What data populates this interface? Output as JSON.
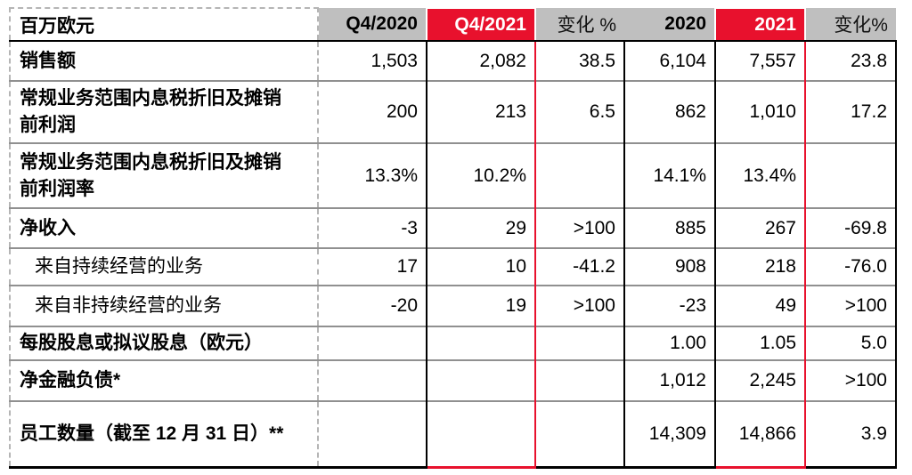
{
  "palette": {
    "highlight_red": "#e8112d",
    "header_gray": "#bfbfbf",
    "grid_gray": "#909090",
    "dashed_border_gray": "#b5b5b5",
    "text_black": "#000000",
    "header_text_white": "#ffffff"
  },
  "chart_data": {
    "type": "table",
    "title": "",
    "unit_label": "百万欧元",
    "columns": [
      "百万欧元",
      "Q4/2020",
      "Q4/2021",
      "变化 %",
      "2020",
      "2021",
      "变化%"
    ],
    "highlighted_columns": [
      "Q4/2021",
      "2021"
    ],
    "rows": [
      {
        "label": "销售额",
        "bold": true,
        "indent": false,
        "values": [
          "1,503",
          "2,082",
          "38.5",
          "6,104",
          "7,557",
          "23.8"
        ]
      },
      {
        "label": "常规业务范围内息税折旧及摊销前利润",
        "bold": true,
        "indent": false,
        "values": [
          "200",
          "213",
          "6.5",
          "862",
          "1,010",
          "17.2"
        ]
      },
      {
        "label": "常规业务范围内息税折旧及摊销前利润率",
        "bold": true,
        "indent": false,
        "values": [
          "13.3%",
          "10.2%",
          "",
          "14.1%",
          "13.4%",
          ""
        ]
      },
      {
        "label": "净收入",
        "bold": true,
        "indent": false,
        "values": [
          "-3",
          "29",
          ">100",
          "885",
          "267",
          "-69.8"
        ]
      },
      {
        "label": "来自持续经营的业务",
        "bold": false,
        "indent": true,
        "values": [
          "17",
          "10",
          "-41.2",
          "908",
          "218",
          "-76.0"
        ]
      },
      {
        "label": "来自非持续经营的业务",
        "bold": false,
        "indent": true,
        "values": [
          "-20",
          "19",
          ">100",
          "-23",
          "49",
          ">100"
        ]
      },
      {
        "label": "每股股息或拟议股息（欧元）",
        "bold": true,
        "indent": false,
        "values": [
          "",
          "",
          "",
          "1.00",
          "1.05",
          "5.0"
        ]
      },
      {
        "label": "净金融负债*",
        "bold": true,
        "indent": false,
        "values": [
          "",
          "",
          "",
          "1,012",
          "2,245",
          ">100"
        ]
      },
      {
        "label": "员工数量（截至 12 月 31 日）**",
        "bold": true,
        "indent": false,
        "values": [
          "",
          "",
          "",
          "14,309",
          "14,866",
          "3.9"
        ]
      }
    ]
  }
}
